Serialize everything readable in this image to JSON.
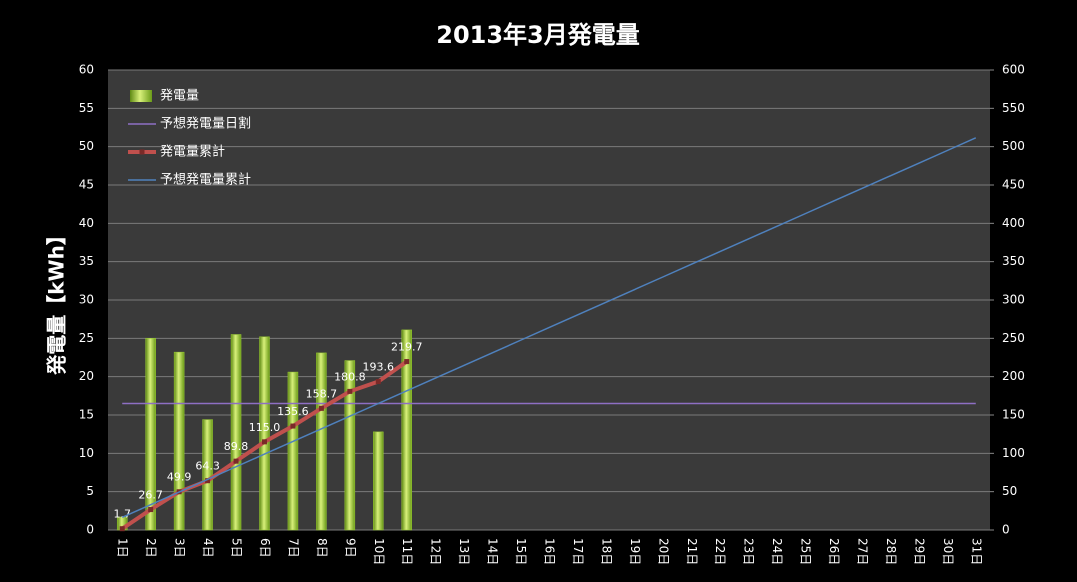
{
  "chart_data": {
    "type": "bar",
    "title": "2013年3月発電量",
    "y_label": "発電量【kWh】",
    "categories": [
      "1日",
      "2日",
      "3日",
      "4日",
      "5日",
      "6日",
      "7日",
      "8日",
      "9日",
      "10日",
      "11日",
      "12日",
      "13日",
      "14日",
      "15日",
      "16日",
      "17日",
      "18日",
      "19日",
      "20日",
      "21日",
      "22日",
      "23日",
      "24日",
      "25日",
      "26日",
      "27日",
      "28日",
      "29日",
      "30日",
      "31日"
    ],
    "series": [
      {
        "name": "発電量",
        "type": "bar",
        "color": "#9acd32",
        "values": [
          1.7,
          25.0,
          23.2,
          14.4,
          25.5,
          25.2,
          20.6,
          23.1,
          22.1,
          12.8,
          26.1,
          null,
          null,
          null,
          null,
          null,
          null,
          null,
          null,
          null,
          null,
          null,
          null,
          null,
          null,
          null,
          null,
          null,
          null,
          null,
          null
        ]
      },
      {
        "name": "予想発電量日割",
        "type": "line",
        "color": "#8e6fc4",
        "values": [
          16.5,
          16.5,
          16.5,
          16.5,
          16.5,
          16.5,
          16.5,
          16.5,
          16.5,
          16.5,
          16.5,
          16.5,
          16.5,
          16.5,
          16.5,
          16.5,
          16.5,
          16.5,
          16.5,
          16.5,
          16.5,
          16.5,
          16.5,
          16.5,
          16.5,
          16.5,
          16.5,
          16.5,
          16.5,
          16.5,
          16.5
        ]
      },
      {
        "name": "発電量累計",
        "type": "line",
        "axis": "y2",
        "color": "#c0504d",
        "markers": true,
        "values": [
          1.7,
          26.7,
          49.9,
          64.3,
          89.8,
          115.0,
          135.6,
          158.7,
          180.8,
          193.6,
          219.7,
          null,
          null,
          null,
          null,
          null,
          null,
          null,
          null,
          null,
          null,
          null,
          null,
          null,
          null,
          null,
          null,
          null,
          null,
          null,
          null
        ],
        "value_labels": [
          "1.7",
          "26.7",
          "49.9",
          "64.3",
          "89.8",
          "115.0",
          "135.6",
          "158.7",
          "180.8",
          "193.6",
          "219.7",
          null,
          null,
          null,
          null,
          null,
          null,
          null,
          null,
          null,
          null,
          null,
          null,
          null,
          null,
          null,
          null,
          null,
          null,
          null,
          null
        ]
      },
      {
        "name": "予想発電量累計",
        "type": "line",
        "axis": "y2",
        "color": "#4f81bd",
        "values": [
          16.5,
          33,
          49.5,
          66,
          82.5,
          99,
          115.5,
          132,
          148.5,
          165,
          181.5,
          198,
          214.5,
          231,
          247.5,
          264,
          280.5,
          297,
          313.5,
          330,
          346.5,
          363,
          379.5,
          396,
          412.5,
          429,
          445.5,
          462,
          478.5,
          495,
          511.5
        ]
      }
    ],
    "ylim": [
      0,
      60
    ],
    "yticks": [
      0,
      5,
      10,
      15,
      20,
      25,
      30,
      35,
      40,
      45,
      50,
      55,
      60
    ],
    "y2lim": [
      0,
      600
    ],
    "y2ticks": [
      0,
      50,
      100,
      150,
      200,
      250,
      300,
      350,
      400,
      450,
      500,
      550,
      600
    ],
    "grid": true,
    "legend": "upper left"
  }
}
